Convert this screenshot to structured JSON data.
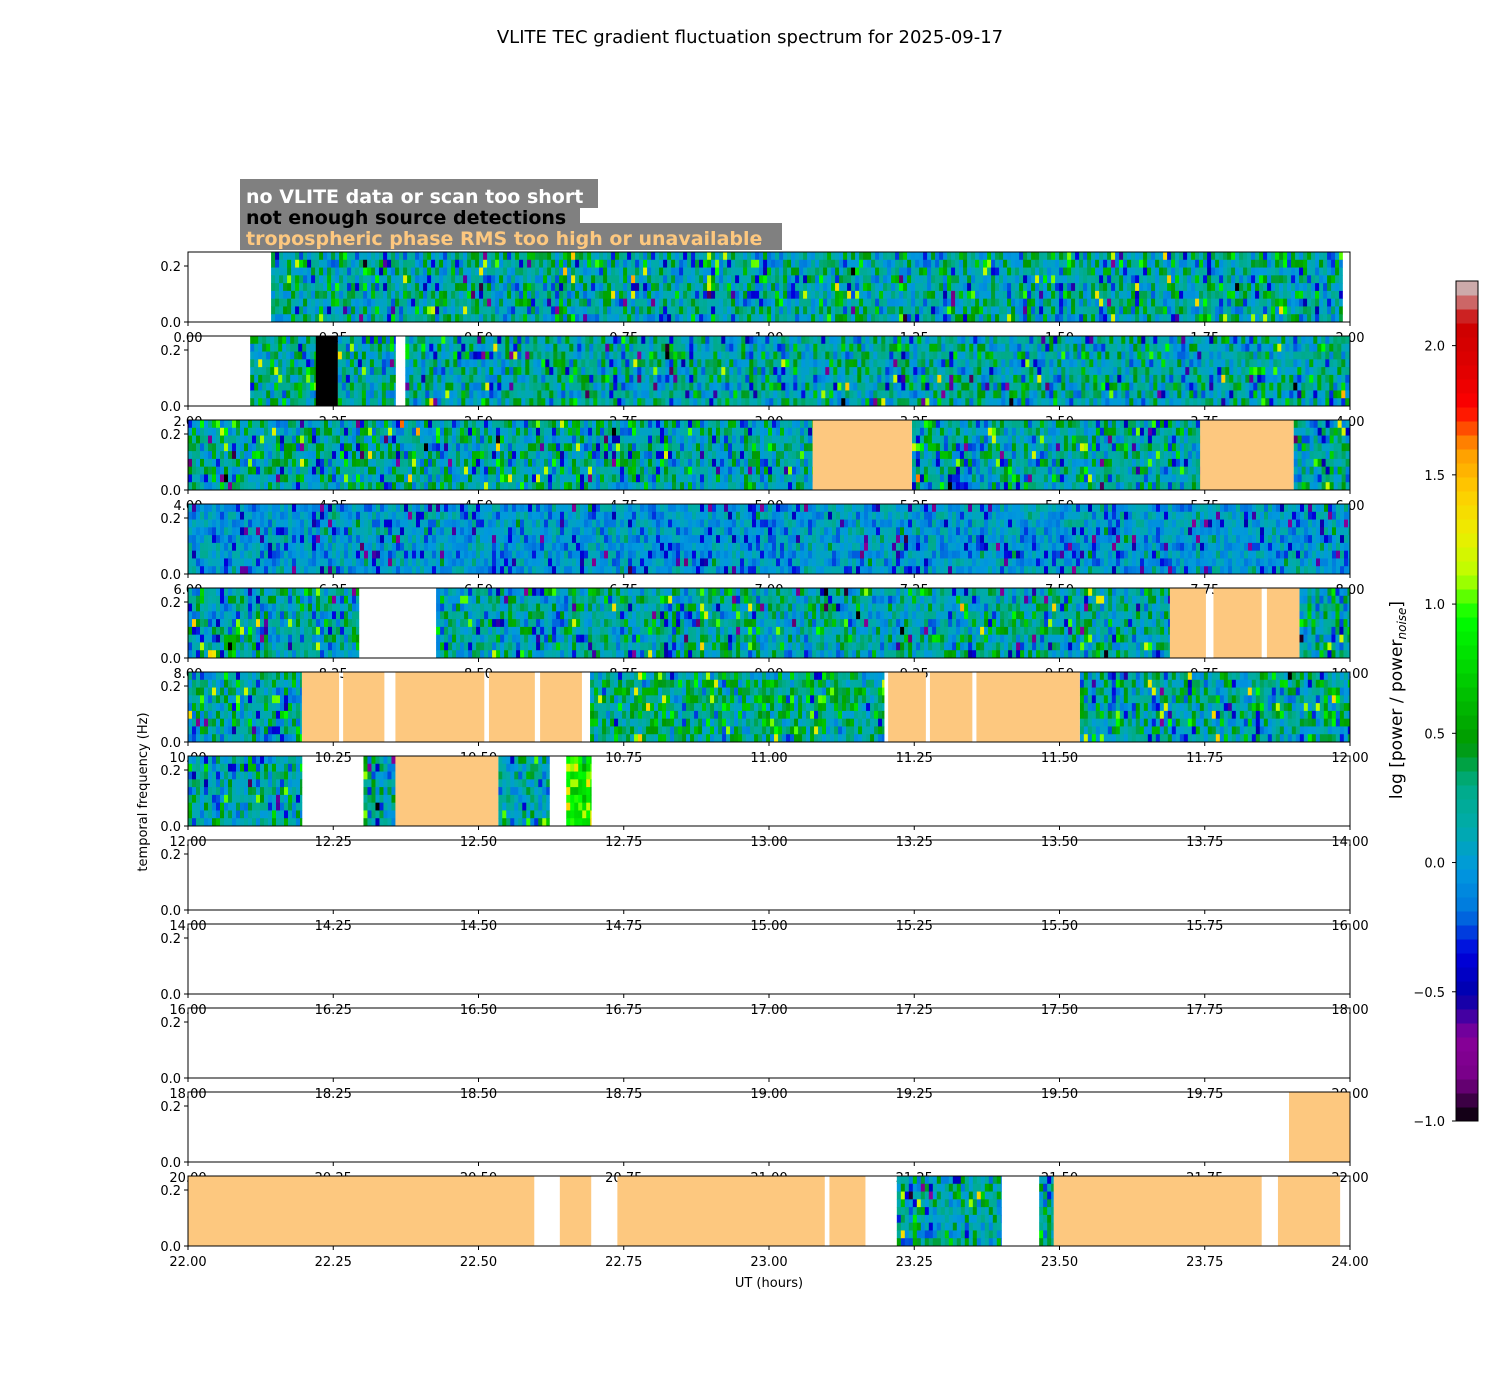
{
  "chart_data": {
    "type": "heatmap",
    "title": "VLITE TEC gradient fluctuation spectrum for 2025-09-17",
    "xlabel": "UT (hours)",
    "ylabel": "temporal frequency (Hz)",
    "ylim": [
      0.0,
      0.25
    ],
    "yticks": [
      "0.0",
      "0.2"
    ],
    "colorbar": {
      "label": "log [power / power",
      "label_sub": "noise",
      "label_close": "]",
      "range": [
        -1.0,
        2.25
      ],
      "ticks": [
        "−1.0",
        "−0.5",
        "0.0",
        "0.5",
        "1.0",
        "1.5",
        "2.0"
      ],
      "tick_values": [
        -1.0,
        -0.5,
        0.0,
        0.5,
        1.0,
        1.5,
        2.0
      ]
    },
    "legend": [
      {
        "label": "no VLITE data or scan too short",
        "color": "#ffffff"
      },
      {
        "label": "not enough source detections",
        "color": "#000000"
      },
      {
        "label": "tropospheric phase RMS too high or unavailable",
        "color": "#fdc87f"
      }
    ],
    "colors": {
      "troposphere": "#fdc87f",
      "detections": "#000000",
      "legend_box": "#808080"
    },
    "panels": [
      {
        "start": 0,
        "end": 2,
        "xticks": [
          "0.00",
          "0.25",
          "0.50",
          "0.75",
          "1.00",
          "1.25",
          "1.50",
          "1.75",
          "2.00"
        ],
        "data": [
          [
            0.143,
            1.987,
            "normal"
          ]
        ],
        "flags": []
      },
      {
        "start": 2,
        "end": 4,
        "xticks": [
          "2.00",
          "2.25",
          "2.50",
          "2.75",
          "3.00",
          "3.25",
          "3.50",
          "3.75",
          "4.00"
        ],
        "data": [
          [
            2.107,
            2.22,
            "green"
          ],
          [
            2.22,
            2.258,
            "black"
          ],
          [
            2.258,
            2.357,
            "normal"
          ],
          [
            2.374,
            4.0,
            "normal"
          ]
        ],
        "flags": []
      },
      {
        "start": 4,
        "end": 6,
        "xticks": [
          "4.00",
          "4.25",
          "4.50",
          "4.75",
          "5.00",
          "5.25",
          "5.50",
          "5.75",
          "6.00"
        ],
        "data": [
          [
            4.0,
            5.075,
            "normal"
          ],
          [
            5.246,
            5.742,
            "normal"
          ],
          [
            5.903,
            6.0,
            "normal"
          ]
        ],
        "flags": [
          [
            5.075,
            5.246
          ],
          [
            5.742,
            5.903
          ]
        ]
      },
      {
        "start": 6,
        "end": 8,
        "xticks": [
          "6.00",
          "6.25",
          "6.50",
          "6.75",
          "7.00",
          "7.25",
          "7.50",
          "7.75",
          "8.00"
        ],
        "data": [
          [
            6.0,
            8.0,
            "blue"
          ]
        ],
        "flags": []
      },
      {
        "start": 8,
        "end": 10,
        "xticks": [
          "8.00",
          "8.25",
          "8.50",
          "8.75",
          "9.00",
          "9.25",
          "9.50",
          "9.75",
          "10.00"
        ],
        "data": [
          [
            8.0,
            8.294,
            "normal"
          ],
          [
            8.427,
            9.69,
            "normal"
          ],
          [
            9.913,
            10.0,
            "normal"
          ]
        ],
        "flags": [
          [
            9.69,
            9.752
          ],
          [
            9.765,
            9.848
          ],
          [
            9.857,
            9.913
          ]
        ]
      },
      {
        "start": 10,
        "end": 12,
        "xticks": [
          "10.00",
          "10.25",
          "10.50",
          "10.75",
          "11.00",
          "11.25",
          "11.50",
          "11.75",
          "12.00"
        ],
        "data": [
          [
            10.0,
            10.196,
            "normal"
          ],
          [
            10.692,
            11.198,
            "green"
          ],
          [
            11.535,
            12.0,
            "normal"
          ]
        ],
        "flags": [
          [
            10.196,
            10.26
          ],
          [
            10.267,
            10.338
          ],
          [
            10.357,
            10.51
          ],
          [
            10.518,
            10.597
          ],
          [
            10.606,
            10.678
          ],
          [
            11.205,
            11.27
          ],
          [
            11.277,
            11.35
          ],
          [
            11.357,
            11.535
          ]
        ]
      },
      {
        "start": 12,
        "end": 14,
        "xticks": [
          "12.00",
          "12.25",
          "12.50",
          "12.75",
          "13.00",
          "13.25",
          "13.50",
          "13.75",
          "14.00"
        ],
        "data": [
          [
            12.0,
            12.196,
            "normal"
          ],
          [
            12.302,
            12.357,
            "normal"
          ],
          [
            12.534,
            12.622,
            "normal"
          ],
          [
            12.651,
            12.694,
            "hot"
          ]
        ],
        "flags": [
          [
            12.357,
            12.534
          ]
        ]
      },
      {
        "start": 14,
        "end": 16,
        "xticks": [
          "14.00",
          "14.25",
          "14.50",
          "14.75",
          "15.00",
          "15.25",
          "15.50",
          "15.75",
          "16.00"
        ],
        "data": [],
        "flags": []
      },
      {
        "start": 16,
        "end": 18,
        "xticks": [
          "16.00",
          "16.25",
          "16.50",
          "16.75",
          "17.00",
          "17.25",
          "17.50",
          "17.75",
          "18.00"
        ],
        "data": [],
        "flags": []
      },
      {
        "start": 18,
        "end": 20,
        "xticks": [
          "18.00",
          "18.25",
          "18.50",
          "18.75",
          "19.00",
          "19.25",
          "19.50",
          "19.75",
          "20.00"
        ],
        "data": [],
        "flags": []
      },
      {
        "start": 20,
        "end": 22,
        "xticks": [
          "20.00",
          "20.25",
          "20.50",
          "20.75",
          "21.00",
          "21.25",
          "21.50",
          "21.75",
          "22.00"
        ],
        "data": [],
        "flags": [
          [
            21.895,
            22.0
          ]
        ]
      },
      {
        "start": 22,
        "end": 24,
        "xticks": [
          "22.00",
          "22.25",
          "22.50",
          "22.75",
          "23.00",
          "23.25",
          "23.50",
          "23.75",
          "24.00"
        ],
        "data": [
          [
            23.22,
            23.4,
            "normal"
          ],
          [
            23.465,
            23.49,
            "normal"
          ]
        ],
        "flags": [
          [
            22.0,
            22.596
          ],
          [
            22.64,
            22.694
          ],
          [
            22.739,
            23.096
          ],
          [
            23.104,
            23.166
          ],
          [
            23.49,
            23.848
          ],
          [
            23.876,
            23.983
          ]
        ]
      }
    ]
  }
}
